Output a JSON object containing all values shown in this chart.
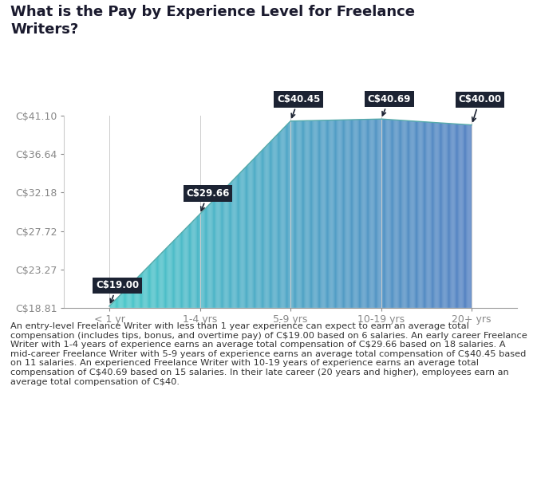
{
  "title": "What is the Pay by Experience Level for Freelance\nWriters?",
  "categories": [
    "< 1 yr",
    "1-4 yrs",
    "5-9 yrs",
    "10-19 yrs",
    "20+ yrs"
  ],
  "values": [
    19.0,
    29.66,
    40.45,
    40.69,
    40.0
  ],
  "ylim_min": 18.81,
  "ylim_max": 41.1,
  "yticks": [
    18.81,
    23.27,
    27.72,
    32.18,
    36.64,
    41.1
  ],
  "ytick_labels": [
    "C$18.81",
    "C$23.27",
    "C$27.72",
    "C$32.18",
    "C$36.64",
    "C$41.10"
  ],
  "annotation_labels": [
    "C$19.00",
    "C$29.66",
    "C$40.45",
    "C$40.69",
    "C$40.00"
  ],
  "annotation_color": "#1c2333",
  "annotation_text_color": "#ffffff",
  "color_start": "#3ec6c6",
  "color_end": "#4a7abf",
  "background_color": "#ffffff",
  "axis_color": "#cccccc",
  "text_color": "#444444",
  "title_fontsize": 13,
  "tick_fontsize": 9,
  "paragraph_text": "An entry-level Freelance Writer with less than 1 year experience can expect to earn an average total compensation (includes tips, bonus, and overtime pay) of C$19.00 based on 6 salaries. An early career Freelance Writer with 1-4 years of experience earns an average total compensation of C$29.66 based on 18 salaries. A mid-career Freelance Writer with 5-9 years of experience earns an average total compensation of C$40.45 based on 11 salaries. An experienced Freelance Writer with 10-19 years of experience earns an average total compensation of C$40.69 based on 15 salaries. In their late career (20 years and higher), employees earn an average total compensation of C$40."
}
